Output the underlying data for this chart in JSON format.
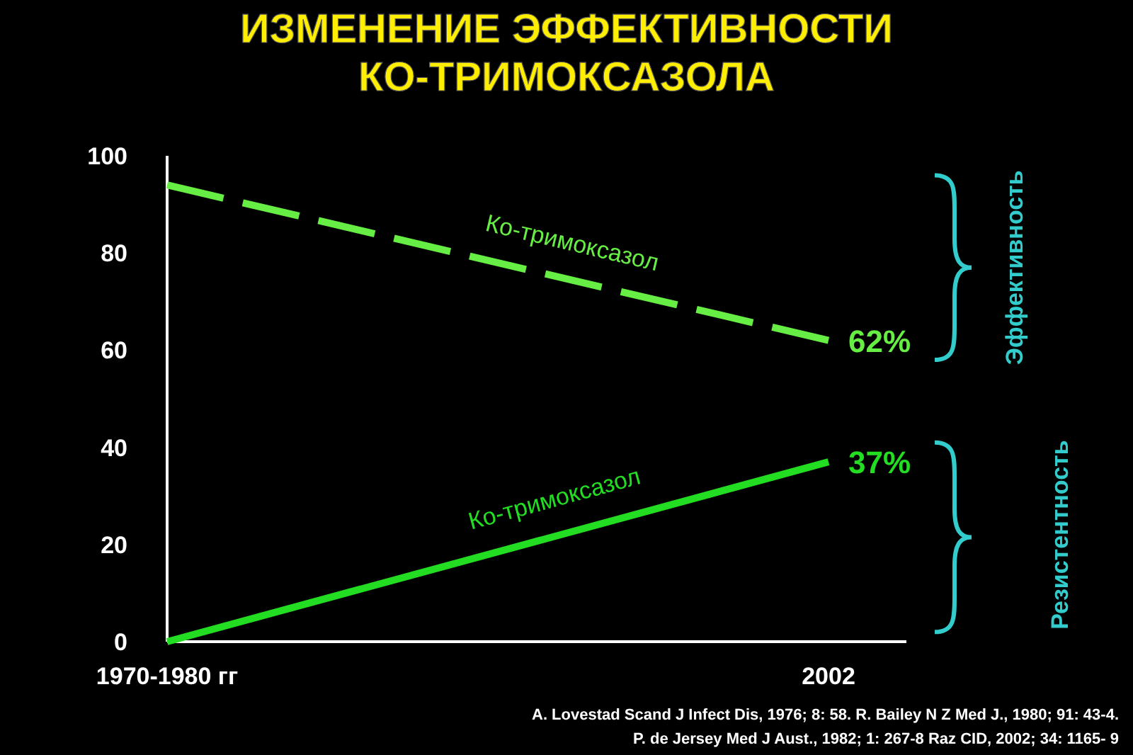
{
  "chart_data": {
    "type": "line",
    "title": "ИЗМЕНЕНИЕ ЭФФЕКТИВНОСТИ\nКО-ТРИМОКСАЗОЛА",
    "categories": [
      "1970-1980 гг",
      "2002"
    ],
    "series": [
      {
        "name": "Ко-тримоксазол",
        "color": "#66ee44",
        "line_style": "dashed",
        "values": [
          94,
          62
        ],
        "value_labels": [
          null,
          "62%"
        ]
      },
      {
        "name": "Ко-тримоксазол",
        "color": "#22dd22",
        "line_style": "solid",
        "values": [
          0,
          37
        ],
        "value_labels": [
          null,
          "37%"
        ]
      }
    ],
    "ylim": [
      0,
      100
    ],
    "yticks": [
      0,
      20,
      40,
      60,
      80,
      100
    ],
    "grid": false,
    "marker": "none",
    "annotations": [
      "Эффективность",
      "Резистентность",
      "A. Lovestad Scand J Infect Dis, 1976; 8: 58.   R. Bailey  N Z Med J., 1980; 91: 43-4.",
      "P. de Jersey  Med J Aust., 1982; 1: 267-8 Raz CID, 2002; 34: 1165- 9"
    ]
  }
}
